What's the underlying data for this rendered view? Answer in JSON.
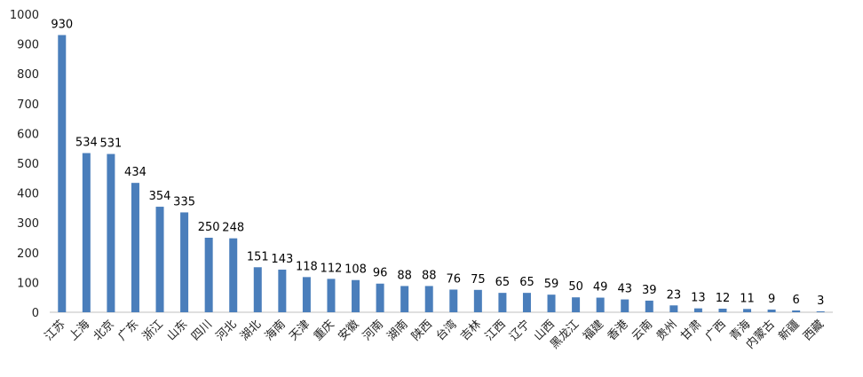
{
  "chart_data": {
    "type": "bar",
    "title": "",
    "xlabel": "",
    "ylabel": "",
    "ylim": [
      0,
      1000
    ],
    "yticks": [
      0,
      100,
      200,
      300,
      400,
      500,
      600,
      700,
      800,
      900,
      1000
    ],
    "grid": false,
    "legend": "none",
    "bar_color": "#4a7ebb",
    "categories": [
      "江苏",
      "上海",
      "北京",
      "广东",
      "浙江",
      "山东",
      "四川",
      "河北",
      "湖北",
      "海南",
      "天津",
      "重庆",
      "安徽",
      "河南",
      "湖南",
      "陕西",
      "台湾",
      "吉林",
      "江西",
      "辽宁",
      "山西",
      "黑龙江",
      "福建",
      "香港",
      "云南",
      "贵州",
      "甘肃",
      "广西",
      "青海",
      "内蒙古",
      "新疆",
      "西藏"
    ],
    "values": [
      930,
      534,
      531,
      434,
      354,
      335,
      250,
      248,
      151,
      143,
      118,
      112,
      108,
      96,
      88,
      88,
      76,
      75,
      65,
      65,
      59,
      50,
      49,
      43,
      39,
      23,
      13,
      12,
      11,
      9,
      6,
      3
    ]
  }
}
